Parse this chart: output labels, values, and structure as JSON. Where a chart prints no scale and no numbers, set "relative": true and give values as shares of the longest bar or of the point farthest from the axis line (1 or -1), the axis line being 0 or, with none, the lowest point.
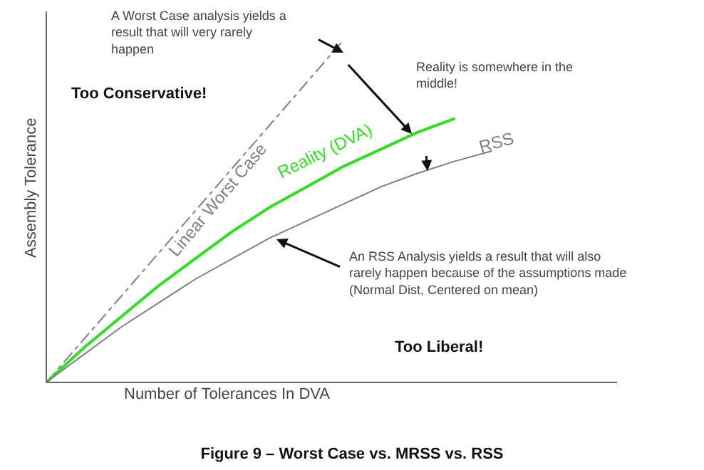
{
  "chart_data": {
    "type": "line",
    "relative": true,
    "title": "Figure 9 – Worst Case vs. MRSS vs. RSS",
    "xlabel": "Number of Tolerances In DVA",
    "ylabel": "Assembly Tolerance",
    "categories": [
      null,
      null,
      null,
      null,
      null,
      null,
      null,
      null,
      null,
      null,
      null,
      null,
      null,
      null,
      null,
      null
    ],
    "series": [
      {
        "name": "Linear Worst Case",
        "color": "#808080",
        "line_style": "dashed",
        "values": [
          0,
          0.125,
          0.25,
          0.375,
          0.5,
          0.625,
          0.75,
          0.875,
          1,
          null,
          null,
          null,
          null,
          null,
          null,
          null
        ]
      },
      {
        "name": "Reality (DVA)",
        "color": "#33dd22",
        "line_style": "solid",
        "values": [
          0,
          0.1,
          0.19,
          0.28,
          0.36,
          0.44,
          0.51,
          0.57,
          0.63,
          0.68,
          0.73,
          0.77,
          null,
          null,
          null,
          null
        ]
      },
      {
        "name": "RSS",
        "color": "#808080",
        "line_style": "solid",
        "values": [
          0,
          0.08,
          0.16,
          0.23,
          0.3,
          0.36,
          0.42,
          0.47,
          0.52,
          0.57,
          0.61,
          0.645,
          0.675,
          null,
          null,
          null
        ]
      }
    ],
    "annotations": [
      "A Worst Case analysis yields a result that will very rarely happen",
      "Reality is somewhere in the middle!",
      "Too Conservative!",
      "An RSS Analysis yields a result that will also rarely happen because of the assumptions made (Normal Dist, Centered on mean)",
      "Too Liberal!"
    ],
    "marker": "none",
    "legend": false,
    "grid": false
  }
}
